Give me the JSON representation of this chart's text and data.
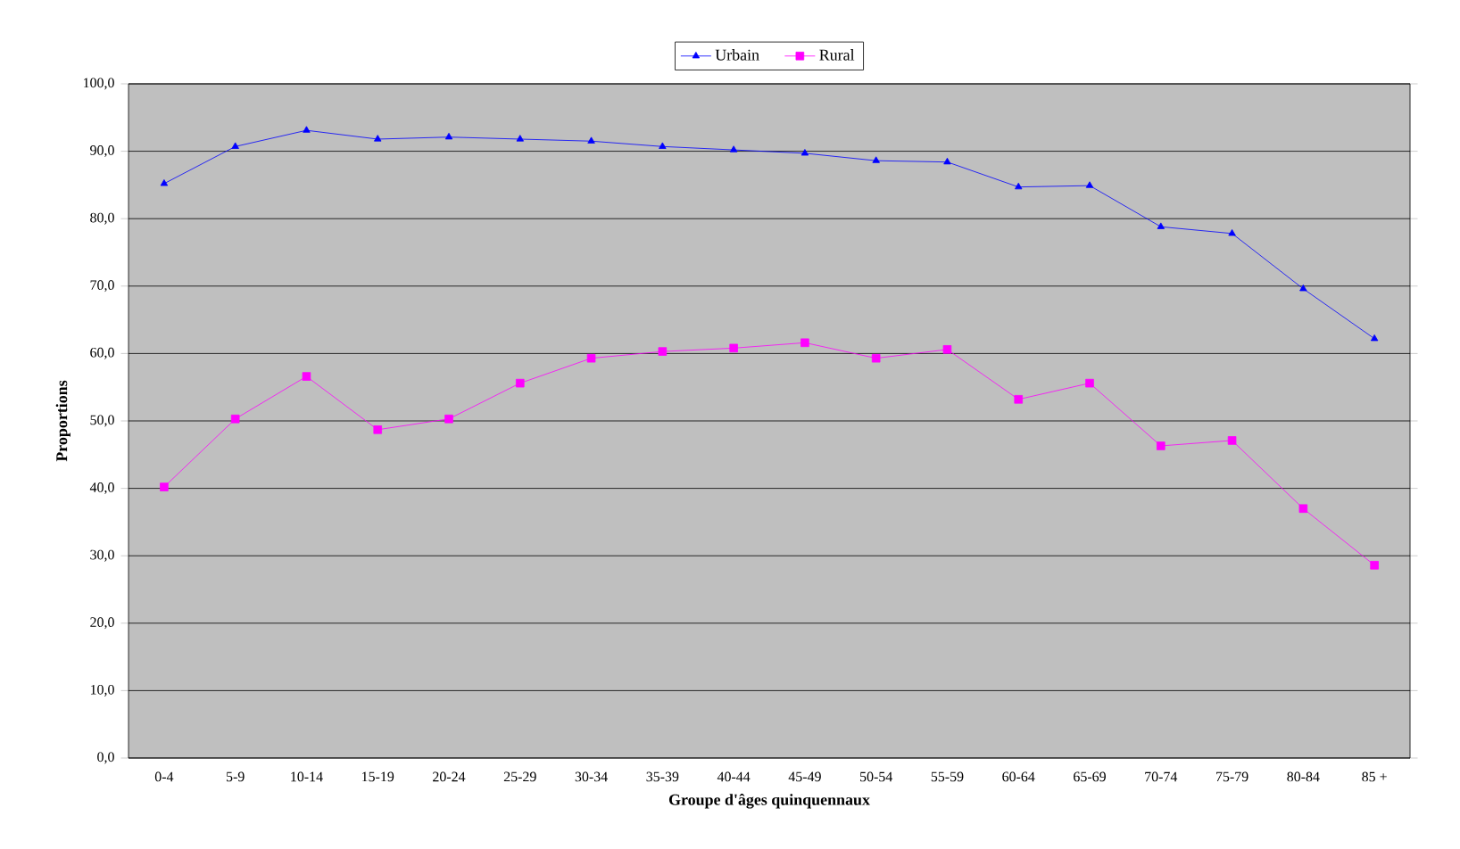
{
  "chart_data": {
    "type": "line",
    "xlabel": "Groupe d'âges quinquennaux",
    "ylabel": "Proportions",
    "categories": [
      "0-4",
      "5-9",
      "10-14",
      "15-19",
      "20-24",
      "25-29",
      "30-34",
      "35-39",
      "40-44",
      "45-49",
      "50-54",
      "55-59",
      "60-64",
      "65-69",
      "70-74",
      "75-79",
      "80-84",
      "85 +"
    ],
    "ylim": [
      0,
      100
    ],
    "yticks": [
      {
        "value": 0,
        "label": "0,0"
      },
      {
        "value": 10,
        "label": "10,0"
      },
      {
        "value": 20,
        "label": "20,0"
      },
      {
        "value": 30,
        "label": "30,0"
      },
      {
        "value": 40,
        "label": "40,0"
      },
      {
        "value": 50,
        "label": "50,0"
      },
      {
        "value": 60,
        "label": "60,0"
      },
      {
        "value": 70,
        "label": "70,0"
      },
      {
        "value": 80,
        "label": "80,0"
      },
      {
        "value": 90,
        "label": "90,0"
      },
      {
        "value": 100,
        "label": "100,0"
      }
    ],
    "grid": "y",
    "legend": "top",
    "series": [
      {
        "name": "Urbain",
        "color": "#0000ff",
        "marker": "triangle",
        "values": [
          85.2,
          90.7,
          93.1,
          91.8,
          92.1,
          91.8,
          91.5,
          90.7,
          90.2,
          89.7,
          88.6,
          88.4,
          84.7,
          84.9,
          78.8,
          77.8,
          69.6,
          62.2
        ]
      },
      {
        "name": "Rural",
        "color": "#ff00ff",
        "marker": "square",
        "values": [
          40.2,
          50.3,
          56.6,
          48.7,
          50.3,
          55.6,
          59.3,
          60.3,
          60.8,
          61.6,
          59.3,
          60.6,
          53.2,
          55.6,
          46.3,
          47.1,
          37.0,
          28.6
        ]
      }
    ]
  }
}
